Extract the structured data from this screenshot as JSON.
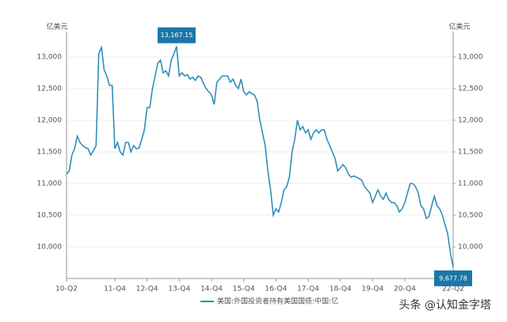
{
  "chart_data": {
    "type": "line",
    "y_unit": "亿美元",
    "y2_unit": "亿美元",
    "categories": [
      "10-Q2",
      null,
      null,
      null,
      null,
      null,
      null,
      null,
      null,
      null,
      null,
      null,
      null,
      null,
      null,
      null,
      null,
      null,
      "11-Q4",
      null,
      null,
      null,
      null,
      null,
      null,
      null,
      null,
      null,
      null,
      null,
      "12-Q4",
      null,
      null,
      null,
      null,
      null,
      null,
      null,
      null,
      null,
      null,
      null,
      "13-Q4",
      null,
      null,
      null,
      null,
      null,
      null,
      null,
      null,
      null,
      null,
      null,
      "14-Q4",
      null,
      null,
      null,
      null,
      null,
      null,
      null,
      null,
      null,
      null,
      null,
      "15-Q4",
      null,
      null,
      null,
      null,
      null,
      null,
      null,
      null,
      null,
      null,
      null,
      "16-Q4",
      null,
      null,
      null,
      null,
      null,
      null,
      null,
      null,
      null,
      null,
      null,
      "17-Q4",
      null,
      null,
      null,
      null,
      null,
      null,
      null,
      null,
      null,
      null,
      null,
      "18-Q4",
      null,
      null,
      null,
      null,
      null,
      null,
      null,
      null,
      null,
      null,
      null,
      "19-Q4",
      null,
      null,
      null,
      null,
      null,
      null,
      null,
      null,
      null,
      null,
      null,
      "20-Q4",
      null,
      null,
      null,
      null,
      null,
      null,
      null,
      null,
      null,
      null,
      null,
      null,
      null,
      null,
      null,
      null,
      null,
      "22-Q2"
    ],
    "series": [
      {
        "name": "美国:外国投资者持有美国国债:中国:亿",
        "color": "#2f8fba",
        "values": [
          11150,
          11200,
          11450,
          11550,
          11750,
          11650,
          11600,
          11570,
          11550,
          11450,
          11520,
          11600,
          13050,
          13150,
          12800,
          12700,
          12550,
          12550,
          11550,
          11650,
          11500,
          11450,
          11650,
          11650,
          11500,
          11600,
          11550,
          11560,
          11700,
          11850,
          12200,
          12200,
          12500,
          12700,
          12900,
          12950,
          12750,
          12780,
          12700,
          12950,
          13050,
          13167.15,
          12700,
          12750,
          12700,
          12720,
          12650,
          12680,
          12630,
          12700,
          12680,
          12580,
          12500,
          12450,
          12400,
          12250,
          12600,
          12650,
          12700,
          12700,
          12700,
          12600,
          12650,
          12550,
          12500,
          12650,
          12450,
          12400,
          12450,
          12420,
          12400,
          12300,
          12000,
          11800,
          11600,
          11200,
          10900,
          10500,
          10600,
          10550,
          10700,
          10900,
          10950,
          11100,
          11500,
          11700,
          12000,
          11850,
          11900,
          11800,
          11850,
          11700,
          11800,
          11850,
          11800,
          11850,
          11850,
          11700,
          11600,
          11500,
          11400,
          11200,
          11250,
          11300,
          11250,
          11150,
          11100,
          11120,
          11100,
          11080,
          11050,
          10950,
          10900,
          10850,
          10700,
          10800,
          10900,
          10800,
          10750,
          10850,
          10750,
          10700,
          10700,
          10650,
          10550,
          10600,
          10700,
          10850,
          11000,
          11000,
          10950,
          10850,
          10650,
          10600,
          10450,
          10480,
          10650,
          10800,
          10650,
          10600,
          10500,
          10350,
          10200,
          9900,
          9677.78
        ]
      }
    ],
    "annotations": [
      {
        "point": 41,
        "label": "13,167.15"
      },
      {
        "point": 144,
        "label": "9,677.78"
      }
    ],
    "annotation_color": "#1b76a6",
    "ylim": [
      9500,
      13400
    ],
    "yticks": [
      {
        "value": 10000,
        "label": "10,000"
      },
      {
        "value": 10500,
        "label": "10,500"
      },
      {
        "value": 11000,
        "label": "11,000"
      },
      {
        "value": 11500,
        "label": "11,500"
      },
      {
        "value": 12000,
        "label": "12,000"
      },
      {
        "value": 12500,
        "label": "12,500"
      },
      {
        "value": 13000,
        "label": "13,000"
      }
    ],
    "y2lim": [
      9500,
      13400
    ],
    "y2ticks": [
      {
        "value": 10000,
        "label": "10,000"
      },
      {
        "value": 10500,
        "label": "10,500"
      },
      {
        "value": 11000,
        "label": "11,000"
      },
      {
        "value": 11500,
        "label": "11,500"
      },
      {
        "value": 12000,
        "label": "12,000"
      },
      {
        "value": 12500,
        "label": "12,500"
      },
      {
        "value": 13000,
        "label": "13,000"
      }
    ],
    "grid": true,
    "legend": "bottom",
    "watermark": "头条 @认知金字塔"
  }
}
